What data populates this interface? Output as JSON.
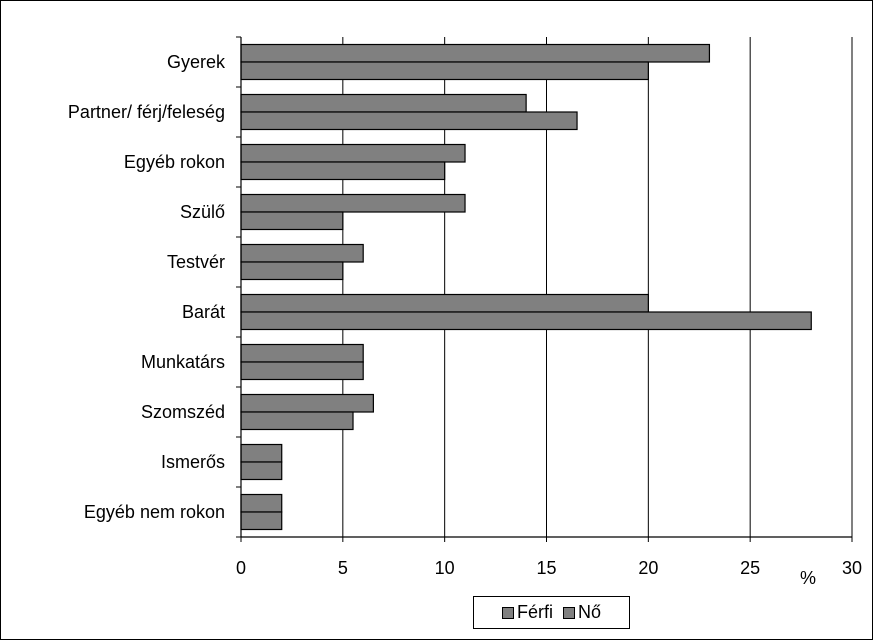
{
  "chart_data": {
    "type": "bar",
    "orientation": "horizontal",
    "categories": [
      "Gyerek",
      "Partner/ férj/feleség",
      "Egyéb rokon",
      "Szülő",
      "Testvér",
      "Barát",
      "Munkatárs",
      "Szomszéd",
      "Ismerős",
      "Egyéb nem rokon"
    ],
    "series": [
      {
        "name": "Férfi",
        "values": [
          23,
          14,
          11,
          11,
          6,
          20,
          6,
          6.5,
          2,
          2
        ],
        "color": "#808080"
      },
      {
        "name": "Nő",
        "values": [
          20,
          16.5,
          10,
          5,
          5,
          28,
          6,
          5.5,
          2,
          2
        ],
        "color": "#808080"
      }
    ],
    "xlim": [
      0,
      30
    ],
    "xticks": [
      "0",
      "5",
      "10",
      "15",
      "20",
      "25",
      "30"
    ],
    "xunit": "%",
    "grid": true,
    "legend_position": "bottom"
  }
}
